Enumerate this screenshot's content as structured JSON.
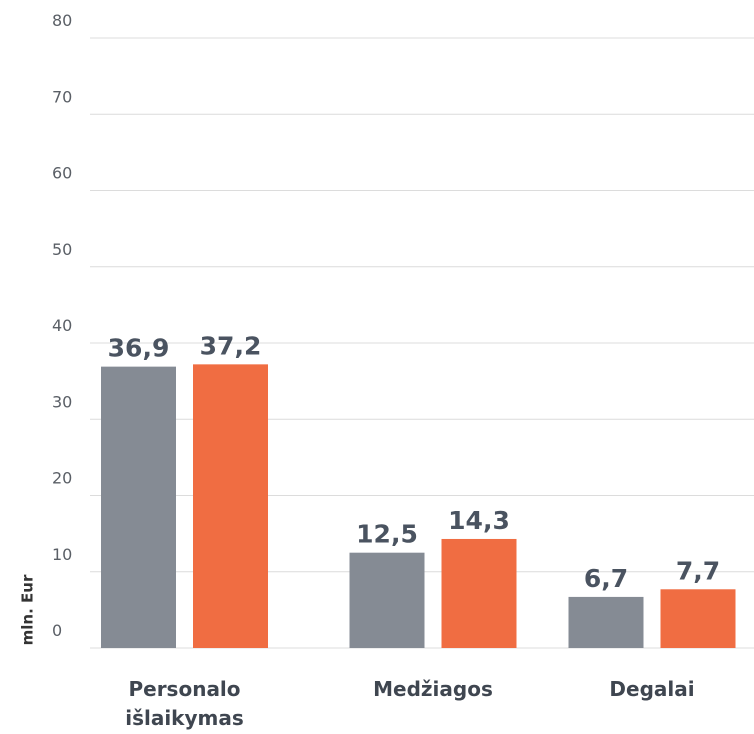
{
  "chart_data": {
    "type": "bar",
    "y_label": "mln. Eur",
    "categories": [
      "Personalo išlaikymas",
      "Medžiagos",
      "Degalai"
    ],
    "series": [
      {
        "color": "#858b94",
        "values": [
          36.9,
          12.5,
          6.7
        ],
        "value_labels": [
          "36,9",
          "12,5",
          "6,7"
        ]
      },
      {
        "color": "#f06d42",
        "values": [
          37.2,
          14.3,
          7.7
        ],
        "value_labels": [
          "37,2",
          "14,3",
          "7,7"
        ]
      }
    ],
    "ylim": [
      0,
      80
    ],
    "yticks": [
      0,
      10,
      20,
      30,
      40,
      50,
      60,
      70,
      80
    ],
    "grid": true
  }
}
